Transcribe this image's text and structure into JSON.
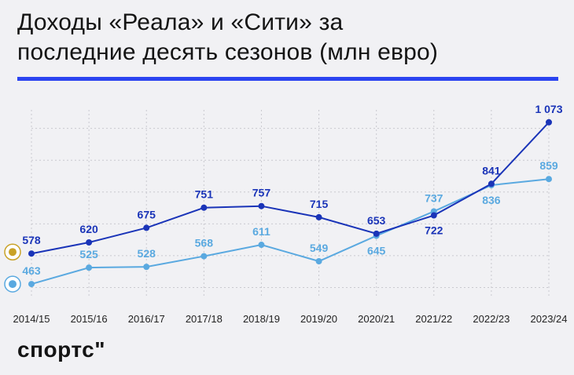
{
  "title": {
    "line1": "Доходы «Реала» и «Сити» за",
    "line2": "последние десять сезонов (млн евро)"
  },
  "brand": "спортс\"",
  "colors": {
    "real": "#1a34b8",
    "city": "#5aa9e0",
    "accent_rule": "#2b44f0",
    "grid": "#c9c9cf",
    "background": "#f1f1f4"
  },
  "chart_data": {
    "type": "line",
    "title": "Доходы «Реала» и «Сити» за последние десять сезонов (млн евро)",
    "categories": [
      "2014/15",
      "2015/16",
      "2016/17",
      "2017/18",
      "2018/19",
      "2019/20",
      "2020/21",
      "2021/22",
      "2022/23",
      "2023/24"
    ],
    "series": [
      {
        "icon": "real-madrid-crest-icon",
        "values": [
          578,
          620,
          675,
          751,
          757,
          715,
          653,
          722,
          841,
          1073
        ],
        "labels": [
          "578",
          "620",
          "675",
          "751",
          "757",
          "715",
          "653",
          "722",
          "841",
          "1 073"
        ],
        "color": "#1a34b8"
      },
      {
        "icon": "manchester-city-crest-icon",
        "values": [
          463,
          525,
          528,
          568,
          611,
          549,
          645,
          737,
          836,
          859
        ],
        "labels": [
          "463",
          "525",
          "528",
          "568",
          "611",
          "549",
          "645",
          "737",
          "836",
          "859"
        ],
        "color": "#5aa9e0"
      }
    ],
    "ylim": [
      410,
      1120
    ],
    "gridlines": [
      450,
      570,
      690,
      810,
      930,
      1050
    ],
    "grid": true,
    "label_placement": {
      "real": [
        "above",
        "above",
        "above",
        "above",
        "above",
        "above",
        "above",
        "below",
        "above",
        "above"
      ],
      "city": [
        "above",
        "above",
        "above",
        "above",
        "above",
        "above",
        "below",
        "above",
        "below",
        "above"
      ]
    }
  }
}
